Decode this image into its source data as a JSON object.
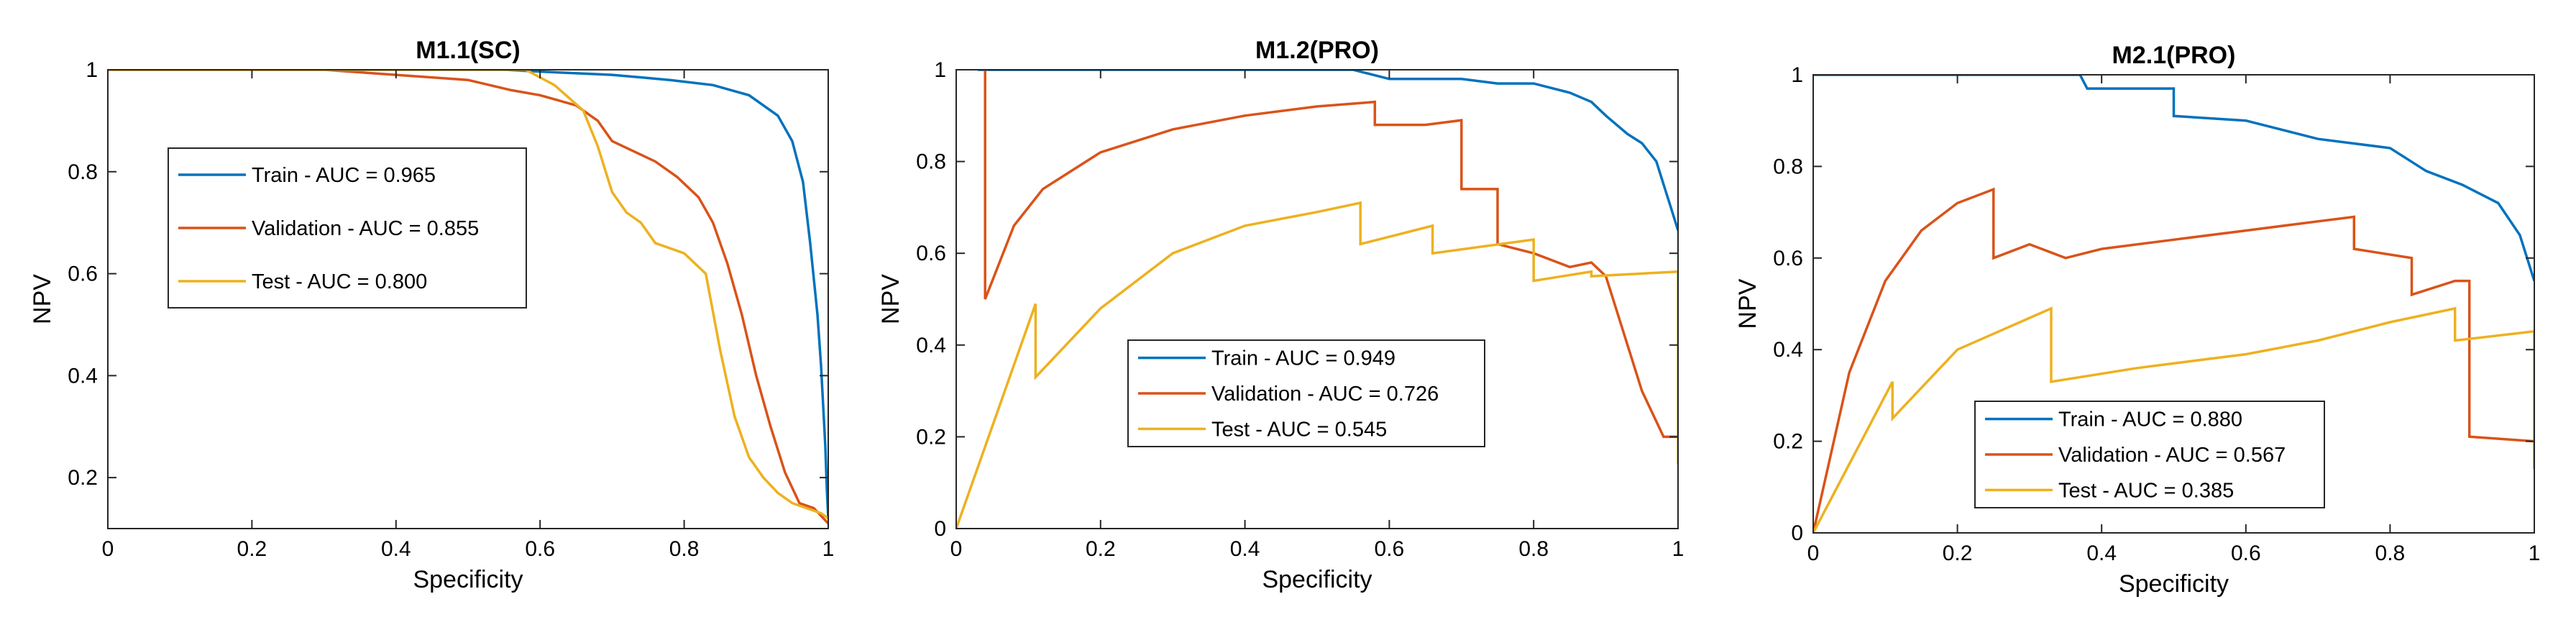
{
  "colors": {
    "train": "#0072BD",
    "validation": "#D95319",
    "test": "#EDB120"
  },
  "chart_data": [
    {
      "type": "line",
      "title": "M1.1(SC)",
      "xlabel": "Specificity",
      "ylabel": "NPV",
      "xlim": [
        0,
        1
      ],
      "ylim": [
        0.1,
        1
      ],
      "xticks": [
        0,
        0.2,
        0.4,
        0.6,
        0.8,
        1
      ],
      "xtick_labels": [
        "0",
        "0.2",
        "0.4",
        "0.6",
        "0.8",
        "1"
      ],
      "yticks": [
        0.2,
        0.4,
        0.6,
        0.8,
        1
      ],
      "ytick_labels": [
        "0.2",
        "0.4",
        "0.6",
        "0.8",
        "1"
      ],
      "legend_position": "upper-left",
      "series": [
        {
          "name": "Train - AUC = 0.965",
          "key": "train",
          "x": [
            0,
            0.55,
            0.62,
            0.7,
            0.78,
            0.84,
            0.89,
            0.93,
            0.95,
            0.965,
            0.975,
            0.985,
            0.99,
            0.993,
            0.996,
            0.998,
            1.0
          ],
          "y": [
            1,
            1,
            0.995,
            0.99,
            0.98,
            0.97,
            0.95,
            0.91,
            0.86,
            0.78,
            0.66,
            0.52,
            0.42,
            0.34,
            0.26,
            0.18,
            0.12
          ]
        },
        {
          "name": "Validation - AUC = 0.855",
          "key": "validation",
          "x": [
            0,
            0.3,
            0.5,
            0.56,
            0.6,
            0.65,
            0.68,
            0.7,
            0.73,
            0.76,
            0.79,
            0.82,
            0.84,
            0.86,
            0.88,
            0.9,
            0.92,
            0.94,
            0.96,
            0.98,
            1.0
          ],
          "y": [
            1,
            1,
            0.98,
            0.96,
            0.95,
            0.93,
            0.9,
            0.86,
            0.84,
            0.82,
            0.79,
            0.75,
            0.7,
            0.62,
            0.52,
            0.4,
            0.3,
            0.21,
            0.15,
            0.14,
            0.11
          ]
        },
        {
          "name": "Test - AUC = 0.800",
          "key": "test",
          "x": [
            0,
            0.58,
            0.62,
            0.66,
            0.68,
            0.7,
            0.72,
            0.74,
            0.76,
            0.8,
            0.83,
            0.85,
            0.87,
            0.89,
            0.91,
            0.93,
            0.95,
            0.97,
            0.99,
            1.0
          ],
          "y": [
            1,
            1,
            0.97,
            0.92,
            0.85,
            0.76,
            0.72,
            0.7,
            0.66,
            0.64,
            0.6,
            0.45,
            0.32,
            0.24,
            0.2,
            0.17,
            0.15,
            0.14,
            0.13,
            0.12
          ]
        }
      ]
    },
    {
      "type": "line",
      "title": "M1.2(PRO)",
      "xlabel": "Specificity",
      "ylabel": "NPV",
      "xlim": [
        0,
        1
      ],
      "ylim": [
        0,
        1
      ],
      "xticks": [
        0,
        0.2,
        0.4,
        0.6,
        0.8,
        1
      ],
      "xtick_labels": [
        "0",
        "0.2",
        "0.4",
        "0.6",
        "0.8",
        "1"
      ],
      "yticks": [
        0,
        0.2,
        0.4,
        0.6,
        0.8,
        1
      ],
      "ytick_labels": [
        "0",
        "0.2",
        "0.4",
        "0.6",
        "0.8",
        "1"
      ],
      "legend_position": "lower-center",
      "series": [
        {
          "name": "Train - AUC = 0.949",
          "key": "train",
          "x": [
            0.03,
            0.55,
            0.6,
            0.7,
            0.75,
            0.8,
            0.85,
            0.88,
            0.9,
            0.93,
            0.95,
            0.97,
            0.98,
            0.99,
            1.0
          ],
          "y": [
            1,
            1,
            0.98,
            0.98,
            0.97,
            0.97,
            0.95,
            0.93,
            0.9,
            0.86,
            0.84,
            0.8,
            0.75,
            0.7,
            0.65
          ]
        },
        {
          "name": "Validation - AUC = 0.726",
          "key": "validation",
          "x": [
            0.04,
            0.04,
            0.08,
            0.12,
            0.2,
            0.3,
            0.4,
            0.5,
            0.58,
            0.58,
            0.65,
            0.7,
            0.7,
            0.75,
            0.75,
            0.8,
            0.85,
            0.88,
            0.9,
            0.92,
            0.95,
            0.98,
            1.0
          ],
          "y": [
            1,
            0.5,
            0.66,
            0.74,
            0.82,
            0.87,
            0.9,
            0.92,
            0.93,
            0.88,
            0.88,
            0.89,
            0.74,
            0.74,
            0.62,
            0.6,
            0.57,
            0.58,
            0.55,
            0.45,
            0.3,
            0.2,
            0.2
          ]
        },
        {
          "name": "Test - AUC = 0.545",
          "key": "test",
          "x": [
            0,
            0.11,
            0.11,
            0.2,
            0.3,
            0.4,
            0.5,
            0.56,
            0.56,
            0.66,
            0.66,
            0.8,
            0.8,
            0.88,
            0.88,
            1.0,
            1.0
          ],
          "y": [
            0,
            0.49,
            0.33,
            0.48,
            0.6,
            0.66,
            0.69,
            0.71,
            0.62,
            0.66,
            0.6,
            0.63,
            0.54,
            0.56,
            0.55,
            0.56,
            0.14
          ]
        }
      ]
    },
    {
      "type": "line",
      "title": "M2.1(PRO)",
      "xlabel": "Specificity",
      "ylabel": "NPV",
      "xlim": [
        0,
        1
      ],
      "ylim": [
        0,
        1
      ],
      "xticks": [
        0,
        0.2,
        0.4,
        0.6,
        0.8,
        1
      ],
      "xtick_labels": [
        "0",
        "0.2",
        "0.4",
        "0.6",
        "0.8",
        "1"
      ],
      "yticks": [
        0,
        0.2,
        0.4,
        0.6,
        0.8,
        1
      ],
      "ytick_labels": [
        "0",
        "0.2",
        "0.4",
        "0.6",
        "0.8",
        "1"
      ],
      "legend_position": "lower-center",
      "series": [
        {
          "name": "Train - AUC = 0.880",
          "key": "train",
          "x": [
            0,
            0.37,
            0.38,
            0.5,
            0.5,
            0.6,
            0.7,
            0.8,
            0.85,
            0.9,
            0.95,
            0.98,
            1.0
          ],
          "y": [
            1,
            1,
            0.97,
            0.97,
            0.91,
            0.9,
            0.86,
            0.84,
            0.79,
            0.76,
            0.72,
            0.65,
            0.55
          ]
        },
        {
          "name": "Validation - AUC = 0.567",
          "key": "validation",
          "x": [
            0,
            0.05,
            0.1,
            0.15,
            0.2,
            0.25,
            0.25,
            0.3,
            0.35,
            0.4,
            0.5,
            0.6,
            0.7,
            0.75,
            0.75,
            0.83,
            0.83,
            0.89,
            0.91,
            0.91,
            1.0,
            1.0
          ],
          "y": [
            0,
            0.35,
            0.55,
            0.66,
            0.72,
            0.75,
            0.6,
            0.63,
            0.6,
            0.62,
            0.64,
            0.66,
            0.68,
            0.69,
            0.62,
            0.6,
            0.52,
            0.55,
            0.55,
            0.21,
            0.2,
            0.14
          ]
        },
        {
          "name": "Test - AUC = 0.385",
          "key": "test",
          "x": [
            0,
            0.11,
            0.11,
            0.2,
            0.33,
            0.33,
            0.45,
            0.55,
            0.6,
            0.7,
            0.8,
            0.89,
            0.89,
            1.0,
            1.0
          ],
          "y": [
            0,
            0.33,
            0.25,
            0.4,
            0.49,
            0.33,
            0.36,
            0.38,
            0.39,
            0.42,
            0.46,
            0.49,
            0.42,
            0.44,
            0.14
          ]
        }
      ]
    }
  ]
}
